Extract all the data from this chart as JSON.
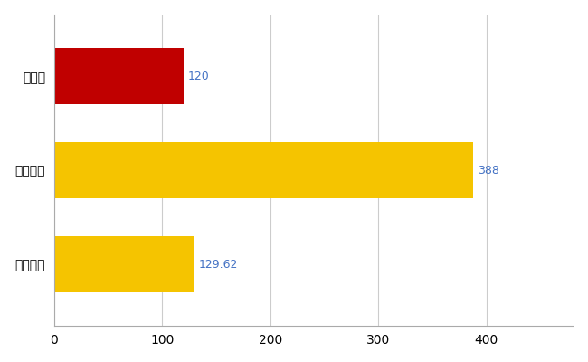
{
  "categories": [
    "全国平均",
    "全国最大",
    "福島県"
  ],
  "values": [
    129.62,
    388,
    120
  ],
  "bar_colors": [
    "#F5C400",
    "#F5C400",
    "#C00000"
  ],
  "label_values": [
    "129.62",
    "388",
    "120"
  ],
  "label_color": "#4472C4",
  "bar_height": 0.6,
  "xlim": [
    0,
    480
  ],
  "xticks": [
    0,
    100,
    200,
    300,
    400
  ],
  "grid_color": "#CCCCCC",
  "bg_color": "#FFFFFF",
  "font_size_labels": 10,
  "font_size_values": 9
}
